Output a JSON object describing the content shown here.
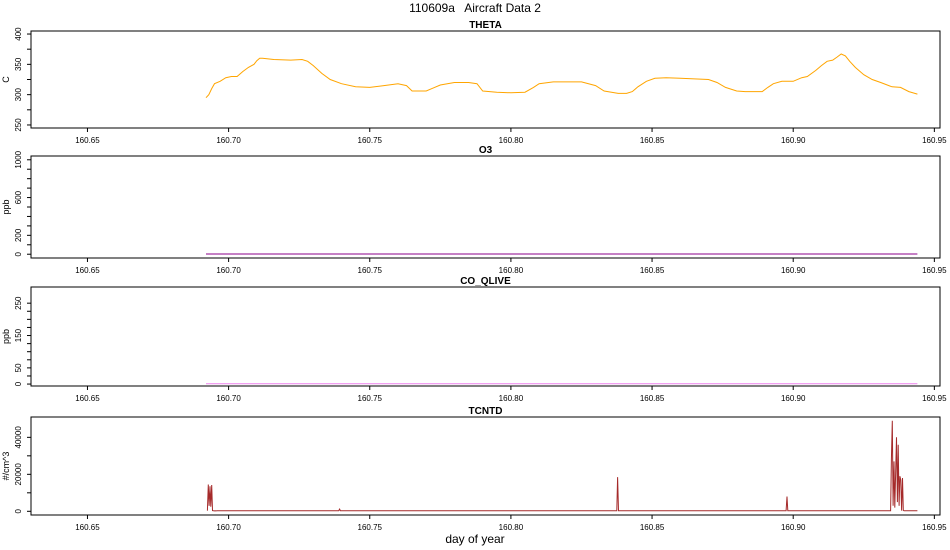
{
  "figure": {
    "title": "110609a   Aircraft Data 2",
    "xlabel": "day of year"
  },
  "chart_data": [
    {
      "type": "line",
      "title": "THETA",
      "ylabel": "C",
      "xlim": [
        160.63,
        160.952
      ],
      "ylim": [
        245,
        405
      ],
      "xticks": [
        "160.65",
        "160.70",
        "160.75",
        "160.80",
        "160.85",
        "160.90",
        "160.95"
      ],
      "yticks": [
        "250",
        "300",
        "350",
        "400"
      ],
      "color": "#FFA500",
      "series": [
        {
          "x": [
            160.692,
            160.693,
            160.694,
            160.695,
            160.697,
            160.699,
            160.701,
            160.703,
            160.705,
            160.707,
            160.709,
            160.71,
            160.711,
            160.712,
            160.716,
            160.722,
            160.726,
            160.728,
            160.73,
            160.733,
            160.736,
            160.74,
            160.745,
            160.75,
            160.755,
            160.76,
            160.763,
            160.765,
            160.77,
            160.772,
            160.775,
            160.78,
            160.785,
            160.788,
            160.79,
            160.795,
            160.8,
            160.805,
            160.808,
            160.81,
            160.815,
            160.82,
            160.825,
            160.83,
            160.833,
            160.838,
            160.841,
            160.843,
            160.845,
            160.848,
            160.851,
            160.855,
            160.86,
            160.865,
            160.87,
            160.873,
            160.876,
            160.88,
            160.883,
            160.886,
            160.889,
            160.891,
            160.893,
            160.896,
            160.9,
            160.903,
            160.905,
            160.908,
            160.91,
            160.912,
            160.914,
            160.9155,
            160.917,
            160.9185,
            160.92,
            160.922,
            160.925,
            160.928,
            160.931,
            160.935,
            160.938,
            160.941,
            160.944
          ],
          "y": [
            295,
            300,
            310,
            318,
            322,
            328,
            330,
            330,
            338,
            345,
            350,
            356,
            360,
            360,
            358,
            357,
            358,
            355,
            348,
            335,
            325,
            318,
            313,
            312,
            315,
            318,
            315,
            306,
            306,
            310,
            316,
            320,
            320,
            318,
            306,
            304,
            303,
            304,
            312,
            318,
            321,
            321,
            321,
            315,
            306,
            302,
            302,
            305,
            313,
            322,
            327,
            328,
            327,
            326,
            325,
            320,
            312,
            306,
            305,
            305,
            305,
            312,
            318,
            322,
            322,
            328,
            330,
            340,
            348,
            355,
            357,
            362,
            367,
            364,
            355,
            345,
            333,
            325,
            320,
            313,
            312,
            305,
            301
          ]
        }
      ]
    },
    {
      "type": "line",
      "title": "O3",
      "ylabel": "ppb",
      "xlim": [
        160.63,
        160.952
      ],
      "ylim": [
        -40,
        1040
      ],
      "xticks": [
        "160.65",
        "160.70",
        "160.75",
        "160.80",
        "160.85",
        "160.90",
        "160.95"
      ],
      "yticks": [
        "0",
        "200",
        "600",
        "1000"
      ],
      "color": "#8B008B",
      "series": [
        {
          "x": [
            160.692,
            160.944
          ],
          "y": [
            2,
            2
          ]
        }
      ]
    },
    {
      "type": "line",
      "title": "CO_QLIVE",
      "ylabel": "ppb",
      "xlim": [
        160.63,
        160.952
      ],
      "ylim": [
        -6,
        300
      ],
      "xticks": [
        "160.65",
        "160.70",
        "160.75",
        "160.80",
        "160.85",
        "160.90",
        "160.95"
      ],
      "yticks": [
        "0",
        "50",
        "150",
        "250"
      ],
      "color": "#EE82EE",
      "series": [
        {
          "x": [
            160.692,
            160.944
          ],
          "y": [
            1,
            1
          ]
        }
      ]
    },
    {
      "type": "line",
      "title": "TCNTD",
      "ylabel": "#/cm^3",
      "xlim": [
        160.63,
        160.952
      ],
      "ylim": [
        -2000,
        51000
      ],
      "xticks": [
        "160.65",
        "160.70",
        "160.75",
        "160.80",
        "160.85",
        "160.90",
        "160.95"
      ],
      "yticks": [
        "0",
        "20000",
        "40000"
      ],
      "color": "#A52A2A",
      "series": [
        {
          "x": [
            160.6925,
            160.6928,
            160.6931,
            160.6934,
            160.6937,
            160.694,
            160.6943,
            160.6946,
            160.6949,
            160.6952,
            160.6955,
            160.696,
            160.71,
            160.72,
            160.739,
            160.7393,
            160.7396,
            160.76,
            160.78,
            160.8,
            160.82,
            160.8375,
            160.8378,
            160.8381,
            160.86,
            160.88,
            160.8975,
            160.8978,
            160.8981,
            160.91,
            160.925,
            160.9345,
            160.9348,
            160.9351,
            160.9354,
            160.9357,
            160.936,
            160.9363,
            160.9366,
            160.9369,
            160.9372,
            160.9375,
            160.9378,
            160.9381,
            160.9384,
            160.9387,
            160.939,
            160.9393,
            160.9396,
            160.94,
            160.944
          ],
          "y": [
            300,
            14500,
            3000,
            13500,
            2500,
            14200,
            400,
            300,
            200,
            250,
            200,
            300,
            300,
            300,
            300,
            1200,
            300,
            300,
            300,
            300,
            300,
            300,
            18500,
            300,
            300,
            300,
            300,
            8000,
            300,
            300,
            300,
            300,
            28000,
            49000,
            3000,
            27000,
            2000,
            22000,
            40000,
            5000,
            36000,
            3000,
            19000,
            17000,
            400,
            18000,
            500,
            300,
            300,
            300,
            300
          ]
        }
      ]
    }
  ]
}
